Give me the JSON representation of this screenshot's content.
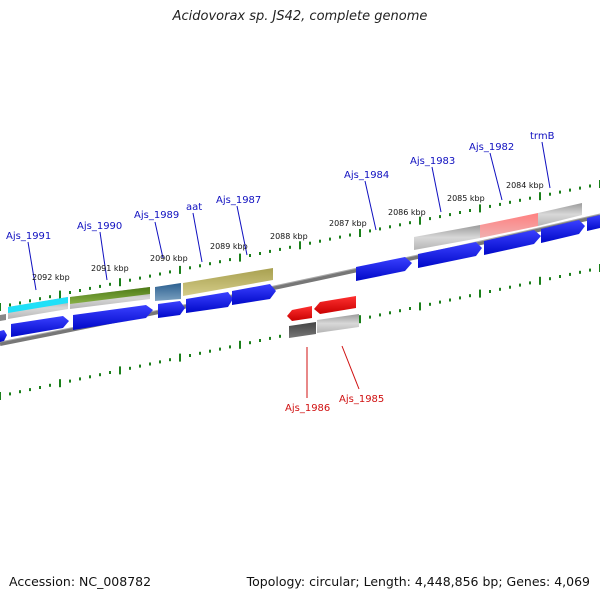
{
  "title": "Acidovorax sp. JS42, complete genome",
  "footer": {
    "accession": "Accession: NC_008782",
    "summary": "Topology: circular; Length: 4,448,856 bp; Genes: 4,069"
  },
  "colors": {
    "forward_gene": "#0a10e0",
    "reverse_gene": "#e00000",
    "backbone": "#777777",
    "tick": "#1a7f1a",
    "fwd_label": "#1010c0",
    "rev_label": "#d01010"
  },
  "kbp_labels": [
    "2092 kbp",
    "2091 kbp",
    "2090 kbp",
    "2089 kbp",
    "2088 kbp",
    "2087 kbp",
    "2086 kbp",
    "2085 kbp",
    "2084 kbp"
  ],
  "gene_labels_forward": [
    "Ajs_1991",
    "Ajs_1990",
    "Ajs_1989",
    "aat",
    "Ajs_1987",
    "Ajs_1984",
    "Ajs_1983",
    "Ajs_1982",
    "trmB"
  ],
  "gene_labels_reverse": [
    "Ajs_1986",
    "Ajs_1985"
  ]
}
